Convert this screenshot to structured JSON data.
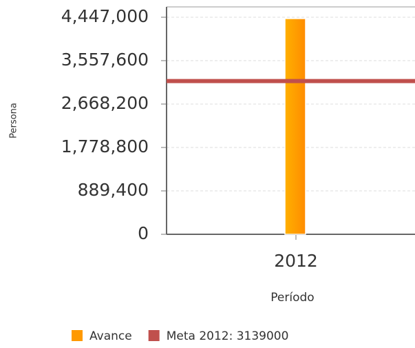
{
  "chart_data": {
    "type": "bar",
    "categories": [
      "2012"
    ],
    "series": [
      {
        "name": "Avance",
        "color": "#ff9900",
        "values": [
          4420000
        ]
      },
      {
        "name": "Meta 2012: 3139000",
        "color": "#c0504d",
        "values": [
          3139000
        ],
        "type": "line"
      }
    ],
    "ylim": [
      0,
      4447000
    ],
    "yticks": [
      0,
      {
        "value": 889400,
        "label": "889,400"
      },
      {
        "value": 1778800,
        "label": "1,778,800"
      },
      {
        "value": 2668200,
        "label": "2,668,200"
      },
      {
        "value": 3557600,
        "label": "3,557,600"
      },
      {
        "value": 4447000,
        "label": "4,447,000"
      }
    ],
    "y_label": "Persona",
    "x_label": "Período",
    "grid": true,
    "legend": "bottom"
  }
}
